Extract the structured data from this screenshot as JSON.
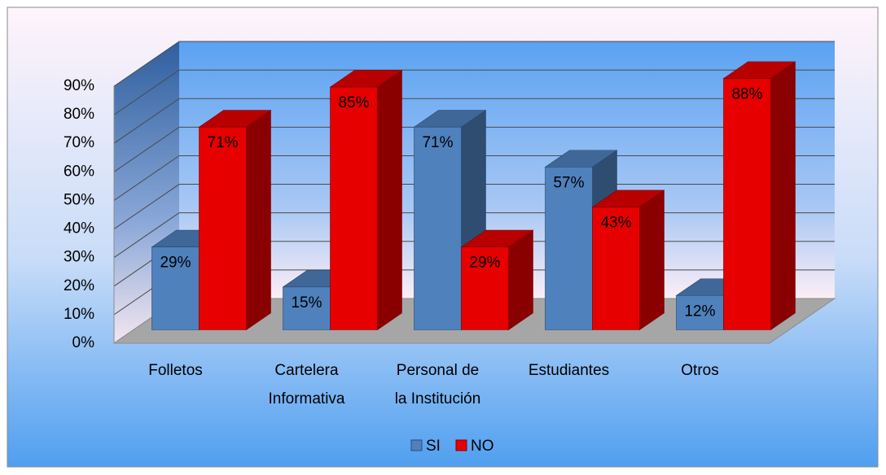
{
  "chart_data": {
    "type": "bar3d",
    "categories": [
      "Folletos",
      "Cartelera\nInformativa",
      "Personal de\nla Institución",
      "Estudiantes",
      "Otros"
    ],
    "series": [
      {
        "name": "SI",
        "color": "#4f81bd",
        "values": [
          29,
          15,
          71,
          57,
          12
        ],
        "value_labels": [
          "29%",
          "15%",
          "71%",
          "57%",
          "12%"
        ]
      },
      {
        "name": "NO",
        "color": "#e60000",
        "values": [
          71,
          85,
          29,
          43,
          88
        ],
        "value_labels": [
          "71%",
          "85%",
          "29%",
          "43%",
          "88%"
        ]
      }
    ],
    "ylim": [
      0,
      90
    ],
    "yticks": [
      {
        "value": 0,
        "label": "0%"
      },
      {
        "value": 10,
        "label": "10%"
      },
      {
        "value": 20,
        "label": "20%"
      },
      {
        "value": 30,
        "label": "30%"
      },
      {
        "value": 40,
        "label": "40%"
      },
      {
        "value": 50,
        "label": "50%"
      },
      {
        "value": 60,
        "label": "60%"
      },
      {
        "value": 70,
        "label": "70%"
      },
      {
        "value": 80,
        "label": "80%"
      },
      {
        "value": 90,
        "label": "90%"
      }
    ],
    "grid": true,
    "legend": "bottom"
  }
}
